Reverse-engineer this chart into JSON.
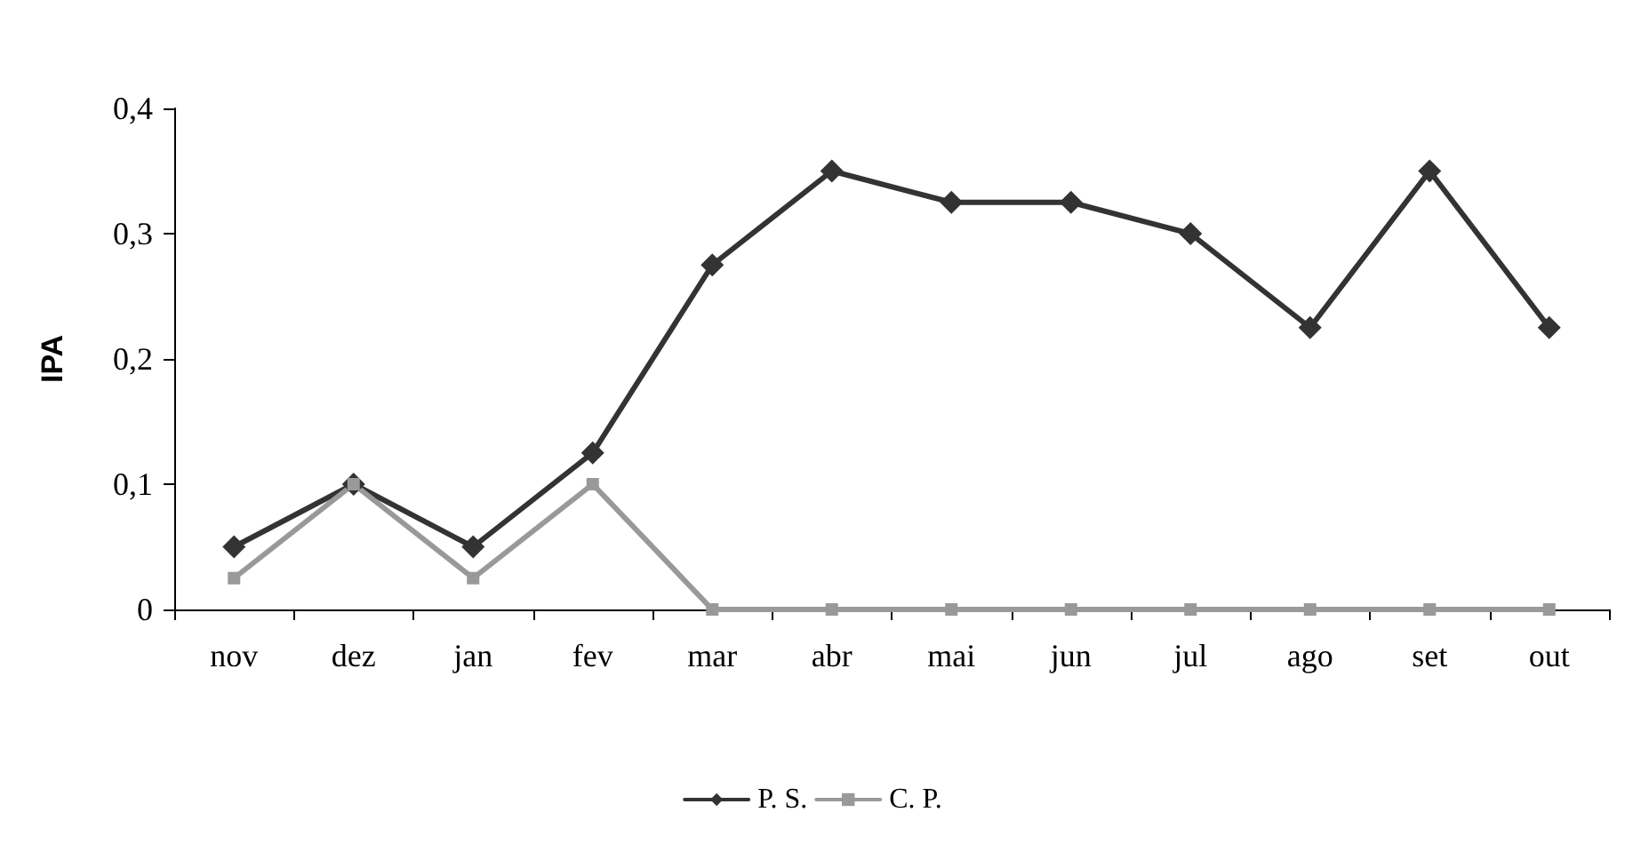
{
  "chart_data": {
    "type": "line",
    "ylabel": "IPA",
    "categories": [
      "nov",
      "dez",
      "jan",
      "fev",
      "mar",
      "abr",
      "mai",
      "jun",
      "jul",
      "ago",
      "set",
      "out"
    ],
    "series": [
      {
        "name": "P. S.",
        "color": "#333333",
        "marker": "diamond",
        "values": [
          0.05,
          0.1,
          0.05,
          0.125,
          0.275,
          0.35,
          0.325,
          0.325,
          0.3,
          0.225,
          0.35,
          0.225
        ]
      },
      {
        "name": "C. P.",
        "color": "#999999",
        "marker": "square",
        "values": [
          0.025,
          0.1,
          0.025,
          0.1,
          0,
          0,
          0,
          0,
          0,
          0,
          0,
          0
        ]
      }
    ],
    "ylim": [
      0,
      0.4
    ],
    "yticks": [
      0,
      {
        "value": 0.1,
        "label": "0,1"
      },
      {
        "value": 0.2,
        "label": "0,2"
      },
      {
        "value": 0.3,
        "label": "0,3"
      },
      {
        "value": 0.4,
        "label": "0,4"
      }
    ],
    "grid": false,
    "legend": "bottom",
    "line_style": "solid"
  }
}
